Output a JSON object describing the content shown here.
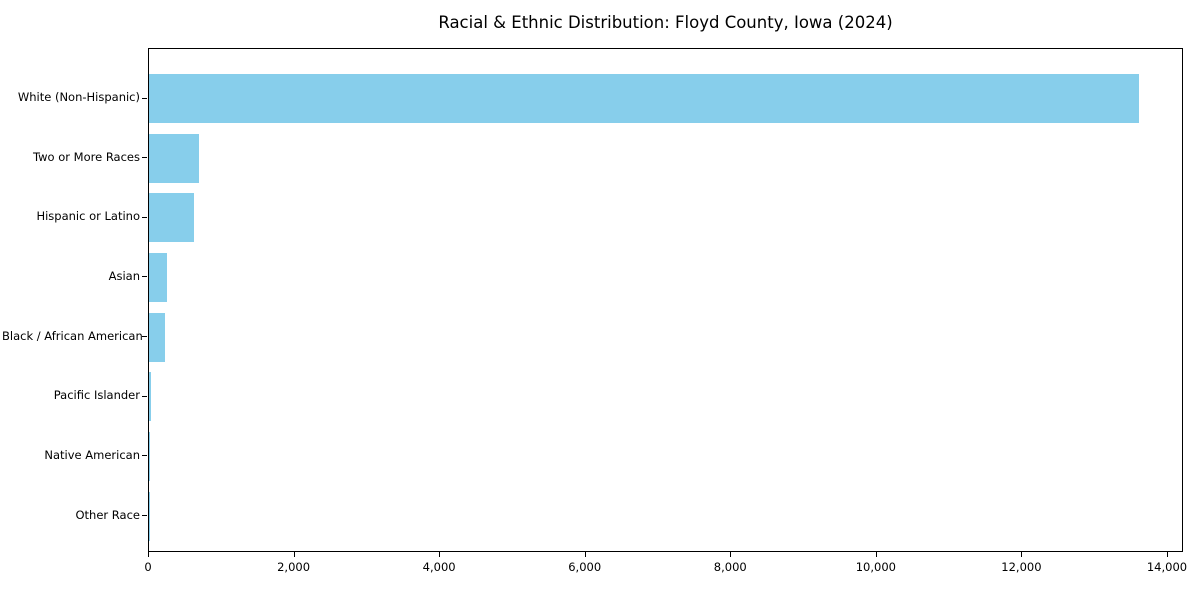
{
  "title": "Racial & Ethnic Distribution: Floyd County, Iowa (2024)",
  "colors": {
    "bar": "#87CEEB",
    "axis": "#000000",
    "text": "#000000",
    "background": "#FFFFFF"
  },
  "chart_data": {
    "type": "bar",
    "orientation": "horizontal",
    "title": "Racial & Ethnic Distribution: Floyd County, Iowa (2024)",
    "xlabel": "",
    "ylabel": "",
    "categories": [
      "White (Non-Hispanic)",
      "Two or More Races",
      "Hispanic or Latino",
      "Asian",
      "Black / African American",
      "Pacific Islander",
      "Native American",
      "Other Race"
    ],
    "values": [
      13600,
      690,
      620,
      250,
      220,
      28,
      18,
      12
    ],
    "xlim": [
      0,
      14220
    ],
    "xticks": [
      0,
      2000,
      4000,
      6000,
      8000,
      10000,
      12000,
      14000
    ],
    "xtick_labels": [
      "0",
      "2,000",
      "4,000",
      "6,000",
      "8,000",
      "10,000",
      "12,000",
      "14,000"
    ],
    "grid": false,
    "legend": null,
    "bar_color": "#87CEEB"
  }
}
